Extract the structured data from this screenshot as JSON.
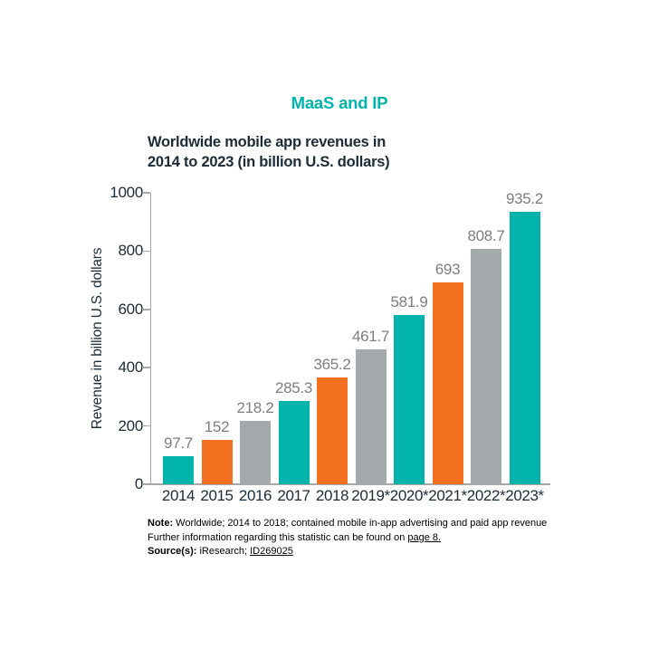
{
  "page": {
    "doc_title": "MaaS and IP",
    "chart_title_line1": "Worldwide mobile app revenues in",
    "chart_title_line2": "2014 to 2023 (in billion U.S. dollars)"
  },
  "chart_data": {
    "type": "bar",
    "title": "Worldwide mobile app revenues in 2014 to 2023 (in billion U.S. dollars)",
    "categories": [
      "2014",
      "2015",
      "2016",
      "2017",
      "2018",
      "2019*",
      "2020*",
      "2021*",
      "2022*",
      "2023*"
    ],
    "values": [
      97.7,
      152,
      218.2,
      285.3,
      365.2,
      461.7,
      581.9,
      693,
      808.7,
      935.2
    ],
    "value_labels": [
      "97.7",
      "152",
      "218.2",
      "285.3",
      "365.2",
      "461.7",
      "581.9",
      "693",
      "808.7",
      "935.2"
    ],
    "xlabel": "",
    "ylabel": "Revenue in billion U.S. dollars",
    "ylim": [
      0,
      1000
    ],
    "yticks": [
      0,
      200,
      400,
      600,
      800,
      1000
    ],
    "grid": false,
    "legend_position": "none",
    "bar_color_cycle": [
      "#00b4ab",
      "#f37021",
      "#a4a9ac"
    ],
    "value_label_color": "#7c7e80",
    "tick_label_color": "#1c2b38",
    "axis_color": "#a8a8a8"
  },
  "note": {
    "note_label": "Note:",
    "note_text": "Worldwide; 2014 to 2018; contained mobile in-app advertising and paid app revenue",
    "further_text": "Further information regarding this statistic can be found on",
    "further_link": "page 8.",
    "source_label": "Source(s):",
    "source_text": "iResearch;",
    "source_link": "ID269025"
  },
  "colors": {
    "accent_teal": "#00b4ab",
    "accent_orange": "#f37021",
    "accent_gray": "#a4a9ac",
    "title_navy": "#1c2b38"
  }
}
